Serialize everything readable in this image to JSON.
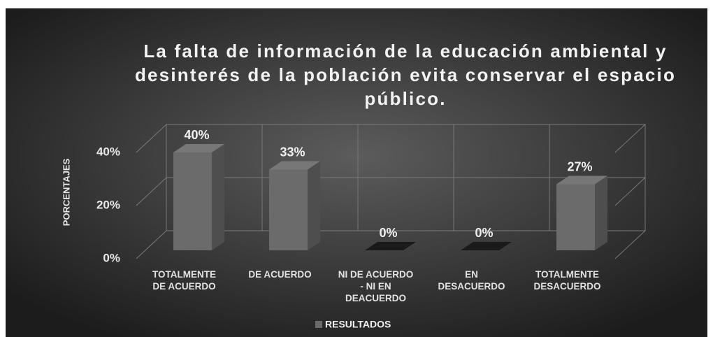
{
  "chart_data": {
    "type": "bar3d",
    "title": [
      "La falta de información de la educación ambiental y",
      "desinterés de la población evita conservar el espacio",
      "público."
    ],
    "ylabel": "PORCENTAJES",
    "categories": [
      "TOTALMENTE DE ACUERDO",
      "DE ACUERDO",
      "NI DE ACUERDO - NI EN DEACUERDO",
      "EN DESACUERDO",
      "TOTALMENTE DESACUERDO"
    ],
    "series": [
      {
        "name": "RESULTADOS",
        "color": "#6b6b6b",
        "values": [
          40,
          33,
          0,
          0,
          27
        ],
        "value_labels": [
          "40%",
          "33%",
          "0%",
          "0%",
          "27%"
        ]
      }
    ],
    "ylim": [
      0,
      40
    ],
    "yticks": [
      {
        "value": 0,
        "label": "0%"
      },
      {
        "value": 20,
        "label": "20%"
      },
      {
        "value": 40,
        "label": "40%"
      }
    ],
    "grid": true,
    "legend": "bottom"
  }
}
